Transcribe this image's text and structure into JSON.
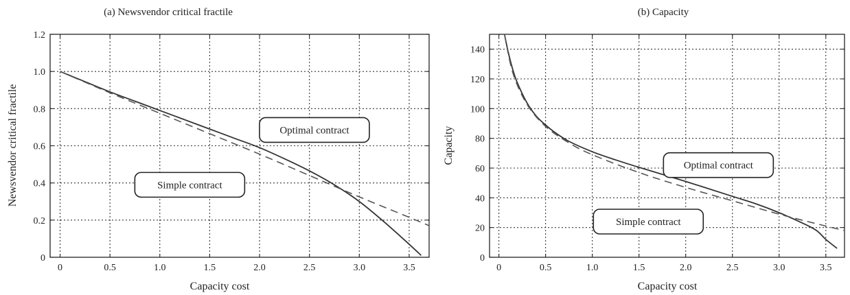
{
  "chart_data": [
    {
      "type": "line",
      "title": "(a) Newsvendor critical fractile",
      "xlabel": "Capacity cost",
      "ylabel": "Newsvendor critical fractile",
      "xlim": [
        -0.1,
        3.7
      ],
      "ylim": [
        0,
        1.2
      ],
      "xticks": [
        0,
        0.5,
        1.0,
        1.5,
        2.0,
        2.5,
        3.0,
        3.5
      ],
      "xtick_labels": [
        "0",
        "0.5",
        "1.0",
        "1.5",
        "2.0",
        "2.5",
        "3.0",
        "3.5"
      ],
      "yticks": [
        0,
        0.2,
        0.4,
        0.6,
        0.8,
        1.0,
        1.2
      ],
      "ytick_labels": [
        "0",
        "0.2",
        "0.4",
        "0.6",
        "0.8",
        "1.0",
        "1.2"
      ],
      "grid": true,
      "series": [
        {
          "style": "solid",
          "x": [
            0,
            0.25,
            0.5,
            0.75,
            1.0,
            1.25,
            1.5,
            1.75,
            2.0,
            2.25,
            2.5,
            2.75,
            3.0,
            3.25,
            3.5,
            3.62
          ],
          "y": [
            1.0,
            0.945,
            0.89,
            0.84,
            0.79,
            0.74,
            0.69,
            0.64,
            0.59,
            0.53,
            0.465,
            0.39,
            0.3,
            0.19,
            0.07,
            0.01
          ]
        },
        {
          "style": "dashed",
          "x": [
            0,
            0.5,
            1.0,
            1.5,
            2.0,
            2.5,
            3.0,
            3.5,
            3.7
          ],
          "y": [
            1.0,
            0.885,
            0.775,
            0.665,
            0.555,
            0.44,
            0.325,
            0.215,
            0.17
          ]
        }
      ],
      "annotations": [
        {
          "text": "Optimal contract",
          "x": 2.55,
          "y": 0.685
        },
        {
          "text": "Simple contract",
          "x": 1.3,
          "y": 0.39
        }
      ]
    },
    {
      "type": "line",
      "title": "(b) Capacity",
      "xlabel": "Capacity cost",
      "ylabel": "Capacity",
      "xlim": [
        -0.1,
        3.7
      ],
      "ylim": [
        0,
        150
      ],
      "xticks": [
        0,
        0.5,
        1.0,
        1.5,
        2.0,
        2.5,
        3.0,
        3.5
      ],
      "xtick_labels": [
        "0",
        "0.5",
        "1.0",
        "1.5",
        "2.0",
        "2.5",
        "3.0",
        "3.5"
      ],
      "yticks": [
        0,
        20,
        40,
        60,
        80,
        100,
        120,
        140
      ],
      "ytick_labels": [
        "0",
        "20",
        "40",
        "60",
        "80",
        "100",
        "120",
        "140"
      ],
      "grid": true,
      "series": [
        {
          "style": "solid",
          "x": [
            0.06,
            0.1,
            0.15,
            0.2,
            0.3,
            0.4,
            0.5,
            0.6,
            0.75,
            1.0,
            1.25,
            1.5,
            2.0,
            2.5,
            2.75,
            3.0,
            3.25,
            3.4,
            3.5,
            3.62
          ],
          "y": [
            150,
            138,
            126,
            117,
            104,
            95,
            89,
            84,
            78,
            71,
            65.5,
            60.5,
            51,
            41,
            36,
            30,
            23,
            18,
            12,
            6
          ]
        },
        {
          "style": "dashed",
          "x": [
            0.06,
            0.15,
            0.3,
            0.5,
            0.75,
            1.0,
            1.5,
            2.0,
            2.5,
            3.0,
            3.5,
            3.7
          ],
          "y": [
            150,
            124,
            103,
            88,
            77,
            69,
            57,
            47,
            38,
            29,
            21,
            18
          ]
        }
      ],
      "annotations": [
        {
          "text": "Optimal contract",
          "x": 2.35,
          "y": 62
        },
        {
          "text": "Simple contract",
          "x": 1.6,
          "y": 24
        }
      ]
    }
  ]
}
